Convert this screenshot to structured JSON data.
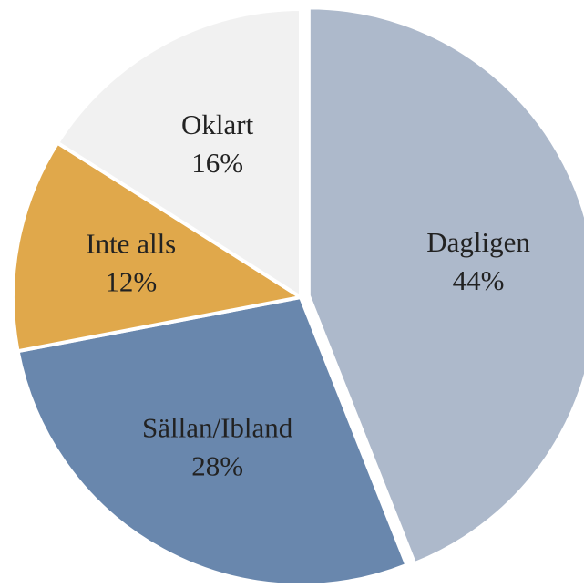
{
  "chart_data": {
    "type": "pie",
    "categories": [
      "Dagligen",
      "Sällan/Ibland",
      "Inte alls",
      "Oklart"
    ],
    "values": [
      44,
      28,
      12,
      16
    ],
    "value_labels": [
      "44%",
      "28%",
      "12%",
      "16%"
    ],
    "colors": [
      "#adb9cb",
      "#6987ad",
      "#e0a84b",
      "#f1f1f1"
    ],
    "exploded": [
      true,
      false,
      false,
      false
    ]
  }
}
